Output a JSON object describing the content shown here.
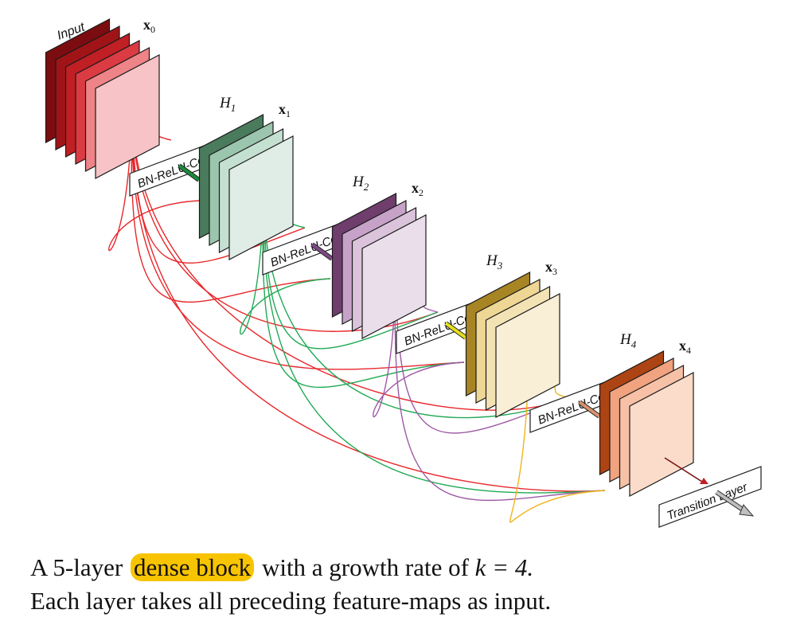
{
  "input_label": "Input",
  "layers": [
    {
      "x": "x",
      "sub": "0",
      "H": null,
      "colors": [
        "#7b0d10",
        "#a01418",
        "#c01f24",
        "#db3b42",
        "#ee8388",
        "#f7c3c6"
      ]
    },
    {
      "x": "x",
      "sub": "1",
      "H": "H",
      "Hsub": "1",
      "op": "BN-ReLU-Conv",
      "colors": [
        "#4a7b5c",
        "#9cc5ae",
        "#c4e0d1",
        "#dfede6"
      ],
      "arrow": "#1a8a3a"
    },
    {
      "x": "x",
      "sub": "2",
      "H": "H",
      "Hsub": "2",
      "op": "BN-ReLU-Conv",
      "colors": [
        "#6f3e6d",
        "#c6a2c8",
        "#dac3db",
        "#eadeeb"
      ],
      "arrow": "#7d4a86"
    },
    {
      "x": "x",
      "sub": "3",
      "H": "H",
      "Hsub": "3",
      "op": "BN-ReLU-Conv",
      "colors": [
        "#a88524",
        "#eed694",
        "#f3e3b4",
        "#f9efd6"
      ],
      "arrow": "#e7e01b"
    },
    {
      "x": "x",
      "sub": "4",
      "H": "H",
      "Hsub": "4",
      "op": "BN-ReLU-Conv",
      "colors": [
        "#ad4413",
        "#f1a27f",
        "#f6c1a6",
        "#fbdccb"
      ],
      "arrow": "#d9936b"
    }
  ],
  "connection_colors": [
    "#e8272b",
    "#22aa55",
    "#9f5aa5",
    "#f0b51c"
  ],
  "transition_label": "Transition Layer",
  "caption": {
    "line1_before": "A 5-layer",
    "line1_highlight": "dense block",
    "line1_after": "with a growth rate of",
    "line1_math": "k = 4.",
    "line2": "Each layer takes all preceding feature-maps as input.",
    "highlight_color": "#f8c400"
  }
}
